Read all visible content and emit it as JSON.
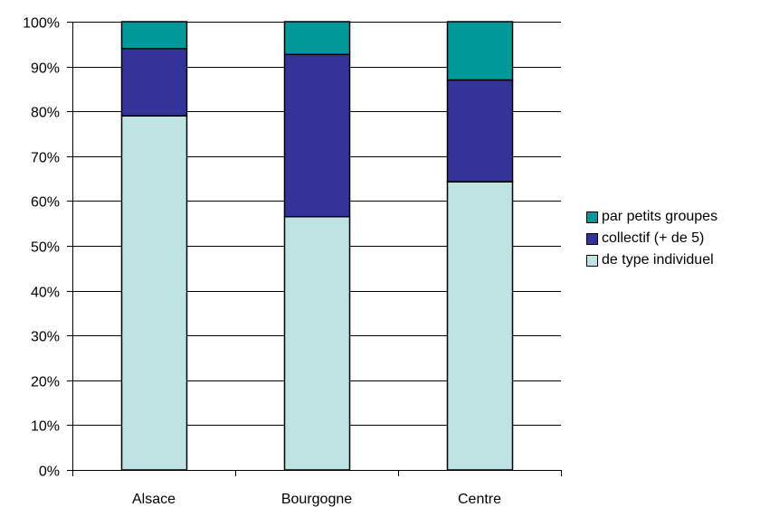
{
  "chart_data": {
    "type": "bar",
    "stacked": true,
    "categories": [
      "Alsace",
      "Bourgogne",
      "Centre"
    ],
    "series": [
      {
        "name": "de type individuel",
        "color": "#bfe3e3",
        "values": [
          79,
          56.5,
          64.3
        ]
      },
      {
        "name": "collectif (+ de 5)",
        "color": "#333399",
        "values": [
          15,
          36.2,
          22.7
        ]
      },
      {
        "name": "par petits groupes",
        "color": "#009999",
        "values": [
          6,
          7.3,
          13
        ]
      }
    ],
    "y_ticks": [
      "0%",
      "10%",
      "20%",
      "30%",
      "40%",
      "50%",
      "60%",
      "70%",
      "80%",
      "90%",
      "100%"
    ],
    "ylim": [
      0,
      100
    ],
    "grid": true,
    "legend_position": "right",
    "legend_order": [
      "par petits groupes",
      "collectif (+ de 5)",
      "de type individuel"
    ]
  }
}
